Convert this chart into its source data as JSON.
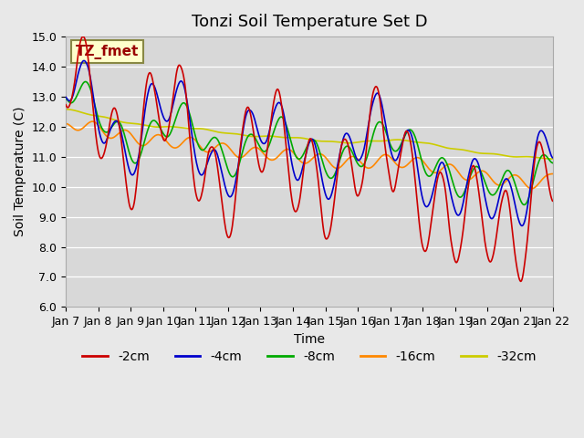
{
  "title": "Tonzi Soil Temperature Set D",
  "xlabel": "Time",
  "ylabel": "Soil Temperature (C)",
  "ylim": [
    6.0,
    15.0
  ],
  "yticks": [
    6.0,
    7.0,
    8.0,
    9.0,
    10.0,
    11.0,
    12.0,
    13.0,
    14.0,
    15.0
  ],
  "x_tick_labels": [
    "Jan 7",
    "Jan 8",
    "Jan 9",
    "Jan 10",
    "Jan 11",
    "Jan 12",
    "Jan 13",
    "Jan 14",
    "Jan 15",
    "Jan 16",
    "Jan 17",
    "Jan 18",
    "Jan 19",
    "Jan 20",
    "Jan 21",
    "Jan 22"
  ],
  "series_colors": [
    "#cc0000",
    "#0000cc",
    "#00aa00",
    "#ff8800",
    "#cccc00"
  ],
  "series_labels": [
    "-2cm",
    "-4cm",
    "-8cm",
    "-16cm",
    "-32cm"
  ],
  "legend_label": "TZ_fmet",
  "legend_bg": "#ffffcc",
  "legend_border": "#888844",
  "legend_text_color": "#990000",
  "bg_color": "#e8e8e8",
  "plot_bg_color": "#d8d8d8",
  "grid_color": "#ffffff",
  "title_fontsize": 13,
  "axis_label_fontsize": 10,
  "tick_fontsize": 9,
  "legend_fontsize": 10,
  "line_width": 1.2,
  "num_days": 15
}
